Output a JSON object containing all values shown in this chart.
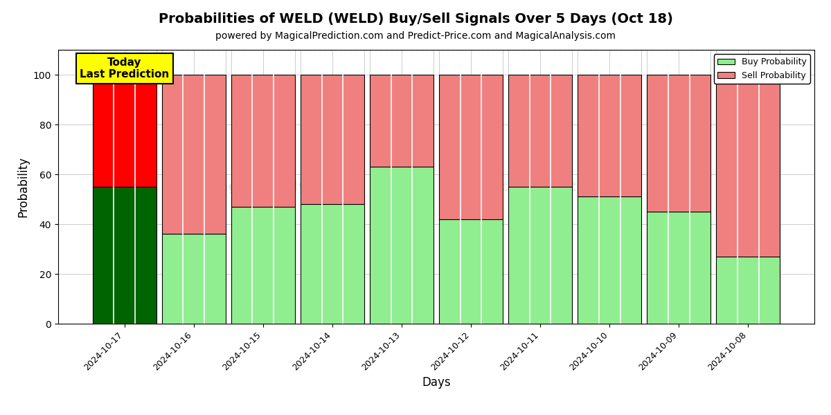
{
  "title": "Probabilities of WELD (WELD) Buy/Sell Signals Over 5 Days (Oct 18)",
  "subtitle": "powered by MagicalPrediction.com and Predict-Price.com and MagicalAnalysis.com",
  "xlabel": "Days",
  "ylabel": "Probability",
  "watermark_left": "MagicalAnalysis.com",
  "watermark_right": "MagicalPrediction.com",
  "days": [
    "2024-10-17",
    "2024-10-16",
    "2024-10-15",
    "2024-10-14",
    "2024-10-13",
    "2024-10-12",
    "2024-10-11",
    "2024-10-10",
    "2024-10-09",
    "2024-10-08"
  ],
  "buy_values": [
    55,
    36,
    47,
    48,
    63,
    42,
    55,
    51,
    45,
    27
  ],
  "sell_values": [
    45,
    64,
    53,
    52,
    37,
    58,
    45,
    49,
    55,
    73
  ],
  "today_buy_color": "#006400",
  "today_sell_color": "#FF0000",
  "buy_color": "#90EE90",
  "sell_color": "#F08080",
  "bar_edgecolor": "black",
  "bar_linewidth": 0.8,
  "today_label": "Today\nLast Prediction",
  "legend_buy": "Buy Probability",
  "legend_sell": "Sell Probability",
  "ylim_max": 110,
  "yticks": [
    0,
    20,
    40,
    60,
    80,
    100
  ],
  "dashed_line_y": 110,
  "grid_color": "#aaaaaa",
  "title_fontsize": 14,
  "subtitle_fontsize": 10,
  "label_fontsize": 12,
  "tick_fontsize": 9,
  "n_subcolumns": 3
}
